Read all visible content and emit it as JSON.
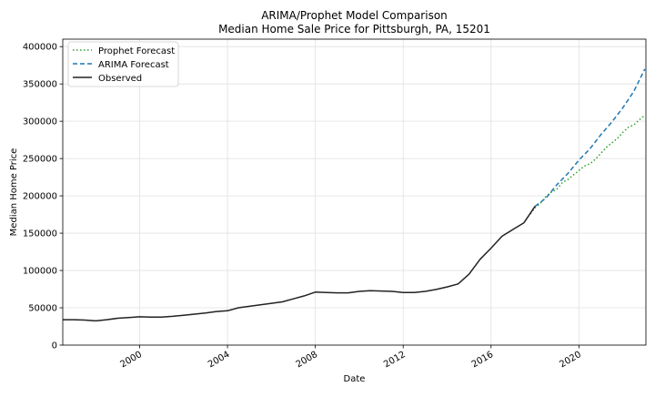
{
  "chart_data": {
    "type": "line",
    "title": "ARIMA/Prophet Model Comparison",
    "subtitle": "Median Home Sale Price for Pittsburgh, PA, 15201",
    "xlabel": "Date",
    "ylabel": "Median Home Price",
    "x_axis": "date",
    "xlim": [
      1996.5,
      2023.05
    ],
    "ylim": [
      0,
      410000
    ],
    "grid": true,
    "legend_position": "top-left",
    "x_ticks": [
      2000,
      2004,
      2008,
      2012,
      2016,
      2020
    ],
    "x_tick_labels": [
      "2000",
      "2004",
      "2008",
      "2012",
      "2016",
      "2020"
    ],
    "y_ticks": [
      0,
      50000,
      100000,
      150000,
      200000,
      250000,
      300000,
      350000,
      400000
    ],
    "y_tick_labels": [
      "0",
      "50000",
      "100000",
      "150000",
      "200000",
      "250000",
      "300000",
      "350000",
      "400000"
    ],
    "series": [
      {
        "name": "Prophet Forecast",
        "color": "#2ca02c",
        "linestyle": "dotted",
        "x": [
          2017.8,
          2018.0,
          2018.25,
          2018.5,
          2018.75,
          2019.0,
          2019.25,
          2019.5,
          2019.75,
          2020.0,
          2020.25,
          2020.5,
          2020.75,
          2021.0,
          2021.25,
          2021.5,
          2021.75,
          2022.0,
          2022.25,
          2022.5,
          2022.75,
          2023.0
        ],
        "values": [
          176000,
          184000,
          190000,
          199000,
          205000,
          209000,
          218000,
          222000,
          228000,
          234000,
          240000,
          243000,
          249000,
          257000,
          265000,
          271000,
          277000,
          285000,
          292000,
          295000,
          302000,
          308000
        ]
      },
      {
        "name": "ARIMA Forecast",
        "color": "#1f77b4",
        "linestyle": "dashed",
        "x": [
          2018.0,
          2018.5,
          2019.0,
          2019.5,
          2020.0,
          2020.5,
          2021.0,
          2021.5,
          2022.0,
          2022.5,
          2023.0
        ],
        "values": [
          186000,
          197000,
          215000,
          230000,
          248000,
          263000,
          282000,
          299000,
          318000,
          340000,
          370000
        ]
      },
      {
        "name": "Observed",
        "color": "#222222",
        "linestyle": "solid",
        "x": [
          1996.5,
          1997.0,
          1997.5,
          1998.0,
          1998.5,
          1999.0,
          1999.5,
          2000.0,
          2000.5,
          2001.0,
          2001.5,
          2002.0,
          2002.5,
          2003.0,
          2003.5,
          2004.0,
          2004.5,
          2005.0,
          2005.5,
          2006.0,
          2006.5,
          2007.0,
          2007.5,
          2008.0,
          2008.5,
          2009.0,
          2009.5,
          2010.0,
          2010.5,
          2011.0,
          2011.5,
          2012.0,
          2012.5,
          2013.0,
          2013.5,
          2014.0,
          2014.5,
          2015.0,
          2015.5,
          2016.0,
          2016.5,
          2017.0,
          2017.5,
          2018.0
        ],
        "values": [
          34000,
          34000,
          33500,
          32500,
          34000,
          36000,
          37000,
          38000,
          37500,
          37500,
          38500,
          40000,
          41500,
          43000,
          45000,
          46000,
          50000,
          52000,
          54000,
          56000,
          58000,
          62000,
          66000,
          71000,
          70500,
          70000,
          70000,
          72000,
          73000,
          72500,
          72000,
          70500,
          70500,
          72000,
          74500,
          78000,
          82000,
          95000,
          115000,
          130000,
          146000,
          155000,
          164000,
          186000
        ]
      }
    ]
  }
}
